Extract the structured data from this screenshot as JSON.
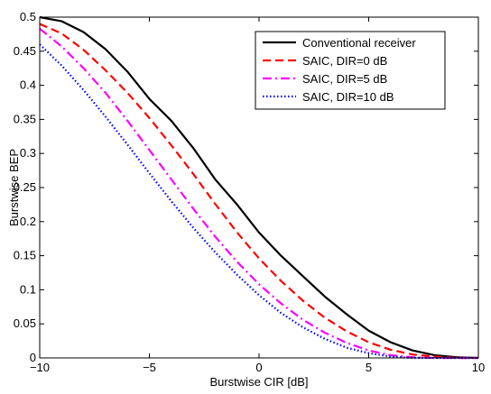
{
  "chart_data": {
    "type": "line",
    "title": "",
    "xlabel": "Burstwise CIR [dB]",
    "ylabel": "Burstwise BEP",
    "xlim": [
      -10,
      10
    ],
    "ylim": [
      0,
      0.5
    ],
    "grid": false,
    "legend_position": "top-right",
    "x_ticks": [
      -10,
      -5,
      0,
      5,
      10
    ],
    "y_ticks": [
      0,
      0.05,
      0.1,
      0.15,
      0.2,
      0.25,
      0.3,
      0.35,
      0.4,
      0.45,
      0.5
    ],
    "x_tick_labels": [
      "−10",
      "−5",
      "0",
      "5",
      "10"
    ],
    "y_tick_labels": [
      "0",
      "0.05",
      "0.1",
      "0.15",
      "0.2",
      "0.25",
      "0.3",
      "0.35",
      "0.4",
      "0.45",
      "0.5"
    ],
    "x": [
      -10,
      -9,
      -8,
      -7,
      -6,
      -5,
      -4,
      -3,
      -2,
      -1,
      0,
      1,
      2,
      3,
      4,
      5,
      6,
      7,
      8,
      9,
      10
    ],
    "series": [
      {
        "name": "Conventional receiver",
        "color": "#000000",
        "line_style": "solid",
        "values": [
          0.5,
          0.494,
          0.478,
          0.453,
          0.42,
          0.38,
          0.348,
          0.308,
          0.262,
          0.225,
          0.184,
          0.15,
          0.12,
          0.09,
          0.064,
          0.04,
          0.023,
          0.011,
          0.004,
          0.001,
          0.0
        ]
      },
      {
        "name": "SAIC, DIR=0 dB",
        "color": "#ff0000",
        "line_style": "dashed",
        "values": [
          0.49,
          0.476,
          0.452,
          0.422,
          0.389,
          0.352,
          0.312,
          0.27,
          0.226,
          0.184,
          0.146,
          0.113,
          0.084,
          0.059,
          0.039,
          0.023,
          0.012,
          0.005,
          0.002,
          0.0,
          0.0
        ]
      },
      {
        "name": "SAIC, DIR=5 dB",
        "color": "#ff00ff",
        "line_style": "dashdot",
        "values": [
          0.483,
          0.457,
          0.425,
          0.389,
          0.348,
          0.305,
          0.262,
          0.219,
          0.178,
          0.141,
          0.108,
          0.08,
          0.056,
          0.037,
          0.022,
          0.011,
          0.004,
          0.001,
          0.0,
          0.0,
          0.0
        ]
      },
      {
        "name": "SAIC, DIR=10 dB",
        "color": "#0000ff",
        "line_style": "dotted",
        "values": [
          0.46,
          0.429,
          0.393,
          0.354,
          0.313,
          0.271,
          0.23,
          0.191,
          0.155,
          0.122,
          0.092,
          0.066,
          0.045,
          0.028,
          0.015,
          0.007,
          0.002,
          0.0,
          0.0,
          0.0,
          0.0
        ]
      }
    ]
  }
}
